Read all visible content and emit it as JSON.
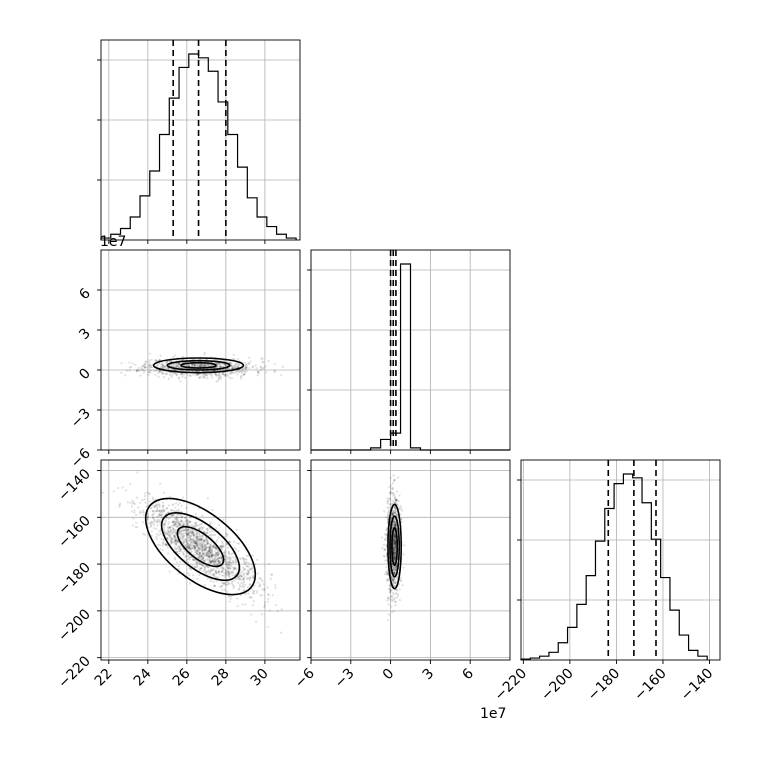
{
  "chart_data": {
    "type": "corner",
    "parameters": [
      {
        "index": 0,
        "quantiles": [
          25.3,
          26.6,
          28.0
        ]
      },
      {
        "index": 1,
        "quantiles": [
          0.0,
          0.2,
          0.4
        ]
      },
      {
        "index": 2,
        "quantiles": [
          -183.5,
          -172.5,
          -163.0
        ]
      }
    ],
    "ranges": [
      [
        21.6,
        31.8
      ],
      [
        -6.0,
        9.0
      ],
      [
        -221.0,
        -135.5
      ]
    ],
    "ticks": {
      "p0": [
        22,
        24,
        26,
        28,
        30
      ],
      "p1": [
        -6,
        -3,
        0,
        3,
        6
      ],
      "p2": [
        -220,
        -200,
        -180,
        -160,
        -140
      ]
    },
    "tick_labels": {
      "p0": [
        "22",
        "24",
        "26",
        "28",
        "30"
      ],
      "p1": [
        "−6",
        "−3",
        "0",
        "3",
        "6"
      ],
      "p2": [
        "−220",
        "−200",
        "−180",
        "−160",
        "−140"
      ]
    },
    "offset_labels": {
      "p1_y": "1e7",
      "p1_x": "1e7"
    },
    "histograms": {
      "p0": {
        "edges": [
          21.6,
          22.1,
          22.6,
          23.1,
          23.6,
          24.1,
          24.6,
          25.1,
          25.6,
          26.1,
          26.6,
          27.1,
          27.6,
          28.1,
          28.6,
          29.1,
          29.6,
          30.1,
          30.6,
          31.1,
          31.6
        ],
        "counts": [
          0.01,
          0.03,
          0.06,
          0.12,
          0.23,
          0.36,
          0.55,
          0.74,
          0.9,
          0.97,
          0.95,
          0.88,
          0.72,
          0.55,
          0.38,
          0.22,
          0.12,
          0.07,
          0.03,
          0.01
        ]
      },
      "p1": {
        "edges": [
          -6,
          -5.25,
          -4.5,
          -3.75,
          -3,
          -2.25,
          -1.5,
          -0.75,
          0,
          0.75,
          1.5,
          2.25,
          3,
          3.75,
          4.5,
          5.25,
          6,
          6.75,
          7.5,
          8.25,
          9
        ],
        "counts": [
          0,
          0,
          0,
          0,
          0,
          0,
          0.01,
          0.05,
          0.08,
          0.88,
          0.01,
          0,
          0,
          0,
          0,
          0,
          0,
          0,
          0,
          0
        ]
      },
      "p2": {
        "edges": [
          -221,
          -217,
          -213,
          -209,
          -205,
          -201,
          -197,
          -193,
          -189,
          -185,
          -181,
          -177,
          -173,
          -169,
          -165,
          -161,
          -157,
          -153,
          -149,
          -145,
          -141
        ],
        "counts": [
          0.005,
          0.01,
          0.02,
          0.04,
          0.09,
          0.17,
          0.29,
          0.44,
          0.62,
          0.79,
          0.92,
          0.97,
          0.95,
          0.82,
          0.63,
          0.43,
          0.26,
          0.13,
          0.05,
          0.02
        ]
      }
    },
    "scatter": {
      "p1_vs_p0": {
        "mean": [
          26.6,
          0.2
        ],
        "sd": [
          1.4,
          0.35
        ],
        "corr": 0.0
      },
      "p2_vs_p0": {
        "mean": [
          26.6,
          -172.5
        ],
        "sd": [
          1.5,
          10.0
        ],
        "corr": -0.82
      },
      "p2_vs_p1": {
        "mean": [
          0.2,
          -172.5
        ],
        "sd": [
          0.25,
          10.0
        ],
        "corr": 0.0
      }
    },
    "contours": {
      "p1_vs_p0": [
        {
          "center": [
            26.6,
            0.35
          ],
          "rx": 2.3,
          "ry": 0.55,
          "angle": 0
        },
        {
          "center": [
            26.6,
            0.35
          ],
          "rx": 1.6,
          "ry": 0.35,
          "angle": 0
        },
        {
          "center": [
            26.6,
            0.35
          ],
          "rx": 0.9,
          "ry": 0.2,
          "angle": 0
        }
      ],
      "p2_vs_p0": [
        {
          "center": [
            26.7,
            -172.5
          ],
          "major": 4.2,
          "minor": 1.35
        },
        {
          "center": [
            26.7,
            -172.5
          ],
          "major": 3.0,
          "minor": 0.9
        },
        {
          "center": [
            26.7,
            -172.5
          ],
          "major": 1.8,
          "minor": 0.5
        }
      ],
      "p2_vs_p1": [
        {
          "center": [
            0.3,
            -172.5
          ],
          "rx": 0.5,
          "ry": 18
        },
        {
          "center": [
            0.3,
            -172.5
          ],
          "rx": 0.35,
          "ry": 13
        },
        {
          "center": [
            0.3,
            -172.5
          ],
          "rx": 0.2,
          "ry": 8
        }
      ]
    },
    "grid": true
  }
}
